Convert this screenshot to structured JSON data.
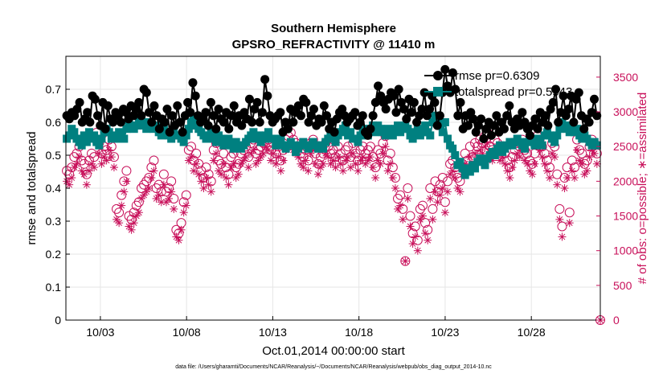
{
  "chart_data": {
    "type": "line",
    "title": "Southern Hemisphere",
    "subtitle": "GPSRO_REFRACTIVITY @ 11410 m",
    "xlabel": "Oct.01,2014 00:00:00 start",
    "ylabel_left": "rmse and totalspread",
    "ylabel_right": "# of obs: o=possible; ∗=assimilated",
    "footnote": "data file: /Users/gharamti/Documents/NCAR/Reanalysis/~/Documents/NCAR/Reanalysis/webpub/obs_diag_output_2014-10.nc",
    "x_ticks": [
      "10/03",
      "10/08",
      "10/13",
      "10/18",
      "10/23",
      "10/28"
    ],
    "x_tick_days": [
      3,
      8,
      13,
      18,
      23,
      28
    ],
    "xlim_days": [
      1.0,
      32.0
    ],
    "ylim_left": [
      0,
      0.8
    ],
    "y_ticks_left": [
      "0",
      "0.1",
      "0.2",
      "0.3",
      "0.4",
      "0.5",
      "0.6",
      "0.7"
    ],
    "ylim_right": [
      0,
      3800
    ],
    "y_ticks_right": [
      "0",
      "500",
      "1000",
      "1500",
      "2000",
      "2500",
      "3000",
      "3500"
    ],
    "grid": true,
    "legend": {
      "position": "top-right",
      "entries": [
        "rmse pr=0.6309",
        "totalspread pr=0.5543"
      ]
    },
    "colors": {
      "rmse": "#000000",
      "totalspread": "#008080",
      "obs": "#c8105a",
      "grid": "#e6e6e6"
    },
    "series": [
      {
        "name": "rmse pr=0.6309",
        "axis": "left",
        "values": [
          0.62,
          0.61,
          0.63,
          0.62,
          0.64,
          0.66,
          0.6,
          0.61,
          0.63,
          0.6,
          0.68,
          0.67,
          0.62,
          0.59,
          0.66,
          0.58,
          0.65,
          0.61,
          0.6,
          0.63,
          0.62,
          0.6,
          0.64,
          0.63,
          0.61,
          0.65,
          0.62,
          0.64,
          0.66,
          0.62,
          0.7,
          0.69,
          0.63,
          0.6,
          0.65,
          0.62,
          0.58,
          0.61,
          0.6,
          0.64,
          0.57,
          0.62,
          0.59,
          0.65,
          0.6,
          0.57,
          0.62,
          0.66,
          0.63,
          0.72,
          0.68,
          0.62,
          0.6,
          0.61,
          0.63,
          0.59,
          0.66,
          0.62,
          0.58,
          0.64,
          0.61,
          0.6,
          0.63,
          0.58,
          0.62,
          0.65,
          0.6,
          0.62,
          0.59,
          0.63,
          0.61,
          0.67,
          0.6,
          0.64,
          0.66,
          0.6,
          0.63,
          0.73,
          0.68,
          0.62,
          0.6,
          0.61,
          0.62,
          0.63,
          0.57,
          0.6,
          0.58,
          0.64,
          0.6,
          0.63,
          0.65,
          0.62,
          0.67,
          0.66,
          0.6,
          0.62,
          0.64,
          0.59,
          0.61,
          0.6,
          0.65,
          0.62,
          0.58,
          0.6,
          0.57,
          0.61,
          0.63,
          0.64,
          0.62,
          0.6,
          0.61,
          0.62,
          0.63,
          0.59,
          0.6,
          0.62,
          0.57,
          0.56,
          0.58,
          0.62,
          0.66,
          0.71,
          0.68,
          0.66,
          0.64,
          0.67,
          0.69,
          0.68,
          0.63,
          0.7,
          0.66,
          0.64,
          0.61,
          0.67,
          0.63,
          0.66,
          0.6,
          0.62,
          0.64,
          0.69,
          0.62,
          0.64,
          0.68,
          0.66,
          0.59,
          0.62,
          0.69,
          0.76,
          0.71,
          0.69,
          0.75,
          0.7,
          0.62,
          0.66,
          0.58,
          0.62,
          0.59,
          0.63,
          0.61,
          0.57,
          0.59,
          0.61,
          0.55,
          0.58,
          0.6,
          0.56,
          0.59,
          0.62,
          0.57,
          0.6,
          0.58,
          0.62,
          0.65,
          0.6,
          0.58,
          0.61,
          0.59,
          0.63,
          0.6,
          0.58,
          0.56,
          0.59,
          0.61,
          0.58,
          0.63,
          0.6,
          0.62,
          0.59,
          0.64,
          0.66,
          0.7,
          0.6,
          0.63,
          0.68,
          0.62,
          0.64,
          0.68,
          0.6,
          0.67,
          0.69,
          0.62,
          0.58,
          0.61,
          0.6,
          0.63,
          0.67,
          0.62
        ]
      },
      {
        "name": "totalspread pr=0.5543",
        "axis": "left",
        "values": [
          0.55,
          0.56,
          0.58,
          0.57,
          0.55,
          0.54,
          0.53,
          0.56,
          0.54,
          0.57,
          0.55,
          0.56,
          0.54,
          0.53,
          0.55,
          0.57,
          0.58,
          0.57,
          0.55,
          0.56,
          0.55,
          0.57,
          0.56,
          0.55,
          0.58,
          0.6,
          0.59,
          0.58,
          0.59,
          0.6,
          0.61,
          0.59,
          0.58,
          0.6,
          0.59,
          0.58,
          0.59,
          0.57,
          0.56,
          0.58,
          0.57,
          0.56,
          0.55,
          0.57,
          0.56,
          0.56,
          0.55,
          0.54,
          0.56,
          0.58,
          0.6,
          0.61,
          0.59,
          0.58,
          0.57,
          0.56,
          0.55,
          0.56,
          0.57,
          0.55,
          0.54,
          0.56,
          0.55,
          0.53,
          0.54,
          0.55,
          0.53,
          0.52,
          0.54,
          0.53,
          0.52,
          0.53,
          0.54,
          0.55,
          0.56,
          0.57,
          0.55,
          0.56,
          0.54,
          0.55,
          0.56,
          0.57,
          0.55,
          0.55,
          0.53,
          0.54,
          0.55,
          0.53,
          0.52,
          0.53,
          0.54,
          0.53,
          0.51,
          0.52,
          0.53,
          0.54,
          0.53,
          0.52,
          0.53,
          0.54,
          0.53,
          0.52,
          0.53,
          0.52,
          0.54,
          0.55,
          0.56,
          0.55,
          0.54,
          0.56,
          0.57,
          0.58,
          0.59,
          0.56,
          0.57,
          0.55,
          0.55,
          0.54,
          0.56,
          0.58,
          0.57,
          0.56,
          0.58,
          0.59,
          0.57,
          0.59,
          0.58,
          0.57,
          0.56,
          0.58,
          0.57,
          0.56,
          0.58,
          0.59,
          0.57,
          0.58,
          0.59,
          0.58,
          0.56,
          0.55,
          0.57,
          0.58,
          0.56,
          0.57,
          0.59,
          0.57,
          0.56,
          0.6,
          0.62,
          0.61,
          0.59,
          0.57,
          0.6,
          0.55,
          0.53,
          0.52,
          0.5,
          0.47,
          0.48,
          0.46,
          0.44,
          0.46,
          0.45,
          0.47,
          0.46,
          0.48,
          0.49,
          0.48,
          0.47,
          0.49,
          0.5,
          0.51,
          0.5,
          0.52,
          0.53,
          0.51,
          0.52,
          0.53,
          0.54,
          0.53,
          0.54,
          0.55,
          0.54,
          0.53,
          0.52,
          0.54,
          0.55,
          0.54,
          0.53,
          0.55,
          0.54,
          0.53,
          0.56,
          0.57,
          0.56,
          0.55,
          0.54,
          0.56,
          0.58,
          0.6,
          0.59,
          0.58,
          0.57,
          0.59,
          0.57,
          0.58,
          0.56,
          0.55,
          0.56,
          0.55,
          0.54,
          0.53,
          0.54,
          0.53
        ]
      },
      {
        "name": "possible obs",
        "axis": "right",
        "values": [
          2150,
          2100,
          2200,
          2350,
          2400,
          2500,
          2300,
          2250,
          2100,
          2300,
          2400,
          2350,
          2700,
          2550,
          2400,
          2500,
          2450,
          2600,
          2500,
          2350,
          1600,
          1550,
          1800,
          2000,
          2150,
          1500,
          1450,
          1550,
          1650,
          1700,
          1900,
          1950,
          2000,
          2050,
          2200,
          2300,
          1900,
          1950,
          1850,
          2100,
          1850,
          1900,
          2000,
          1750,
          1300,
          1250,
          1400,
          1700,
          1800,
          2450,
          2500,
          2300,
          2400,
          2250,
          2150,
          2050,
          2200,
          2100,
          2000,
          2450,
          2550,
          2300,
          2250,
          2400,
          2200,
          2100,
          2350,
          2400,
          2200,
          2250,
          2400,
          2450,
          2500,
          2350,
          2550,
          2600,
          2400,
          2450,
          2500,
          2550,
          2650,
          2600,
          2450,
          2550,
          2400,
          2500,
          2300,
          2450,
          2600,
          2650,
          2700,
          2600,
          2550,
          2500,
          2400,
          2350,
          2450,
          2300,
          2550,
          2600,
          2400,
          2250,
          2350,
          2400,
          2550,
          2500,
          2400,
          2450,
          2350,
          2500,
          2400,
          2300,
          2450,
          2500,
          2350,
          2550,
          2400,
          2300,
          2450,
          2500,
          2400,
          2450,
          2500,
          2350,
          2200,
          2450,
          2400,
          2550,
          2650,
          2300,
          2400,
          2200,
          2050,
          1750,
          1800,
          1600,
          850,
          1900,
          1500,
          1250,
          1350,
          1150,
          1600,
          1650,
          1400,
          1300,
          1900,
          1600,
          2000,
          1850,
          1950,
          2050,
          1700,
          2000,
          2250,
          2300,
          2200,
          2050,
          2000,
          2250,
          2400,
          2300,
          2500,
          2350,
          2550,
          2500,
          2600,
          2550,
          2650,
          2700,
          2500,
          2450,
          2600,
          2550,
          2450,
          2500,
          2400,
          2300,
          2200,
          2350,
          2450,
          2550,
          2500,
          2600,
          2450,
          2400,
          2300,
          2250,
          2400,
          2650,
          2600,
          2500,
          2400,
          2300,
          2200,
          2550,
          2500,
          2100,
          1600,
          1350,
          2050,
          2200,
          1550,
          2300,
          2200,
          2600,
          2450,
          2400,
          2250,
          2300,
          2500,
          2600,
          2550,
          2400
        ]
      },
      {
        "name": "assimilated obs",
        "axis": "right",
        "values": [
          2000,
          1950,
          2050,
          2200,
          2250,
          2350,
          2150,
          2100,
          1950,
          2150,
          2250,
          2200,
          2550,
          2400,
          2250,
          2350,
          2300,
          2450,
          2350,
          2200,
          1450,
          1400,
          1650,
          1850,
          2000,
          1350,
          1300,
          1400,
          1500,
          1550,
          1750,
          1800,
          1850,
          1900,
          2050,
          2150,
          1750,
          1800,
          1700,
          1950,
          1700,
          1750,
          1850,
          1600,
          1200,
          1150,
          1300,
          1550,
          1650,
          2300,
          2350,
          2150,
          2250,
          2100,
          2000,
          1900,
          2050,
          1950,
          1850,
          2300,
          2400,
          2150,
          2100,
          2250,
          2050,
          1950,
          2200,
          2250,
          2050,
          2100,
          2250,
          2300,
          2350,
          2200,
          2400,
          2450,
          2250,
          2300,
          2350,
          2400,
          2500,
          2450,
          2300,
          2400,
          2250,
          2350,
          2150,
          2300,
          2450,
          2500,
          2550,
          2450,
          2400,
          2350,
          2250,
          2200,
          2300,
          2150,
          2400,
          2450,
          2250,
          2100,
          2200,
          2250,
          2400,
          2350,
          2250,
          2300,
          2200,
          2350,
          2250,
          2150,
          2300,
          2350,
          2200,
          2400,
          2250,
          2150,
          2300,
          2350,
          2250,
          2300,
          2350,
          2200,
          2050,
          2300,
          2250,
          2400,
          2500,
          2150,
          2250,
          2050,
          1900,
          1600,
          1650,
          1450,
          850,
          1750,
          1350,
          1100,
          1200,
          1000,
          1450,
          1500,
          1250,
          1150,
          1750,
          1450,
          1850,
          1700,
          1800,
          1900,
          1550,
          1850,
          2100,
          2150,
          2050,
          1900,
          1850,
          2100,
          2250,
          2150,
          2350,
          2200,
          2400,
          2350,
          2450,
          2400,
          2500,
          2550,
          2350,
          2300,
          2450,
          2400,
          2300,
          2350,
          2250,
          2150,
          2050,
          2200,
          2300,
          2400,
          2350,
          2450,
          2300,
          2250,
          2150,
          2100,
          2250,
          2500,
          2450,
          2350,
          2250,
          2150,
          2050,
          2400,
          2350,
          1950,
          1450,
          1200,
          1900,
          2050,
          1400,
          2150,
          2050,
          2450,
          2300,
          2250,
          2100,
          2150,
          2350,
          2450,
          2400,
          2250
        ]
      }
    ],
    "annotations": [
      {
        "text": "o",
        "description": "possible obs marker at day 32, value 0"
      },
      {
        "text": "*",
        "description": "assimilated obs marker at day 32, value 0"
      }
    ]
  }
}
